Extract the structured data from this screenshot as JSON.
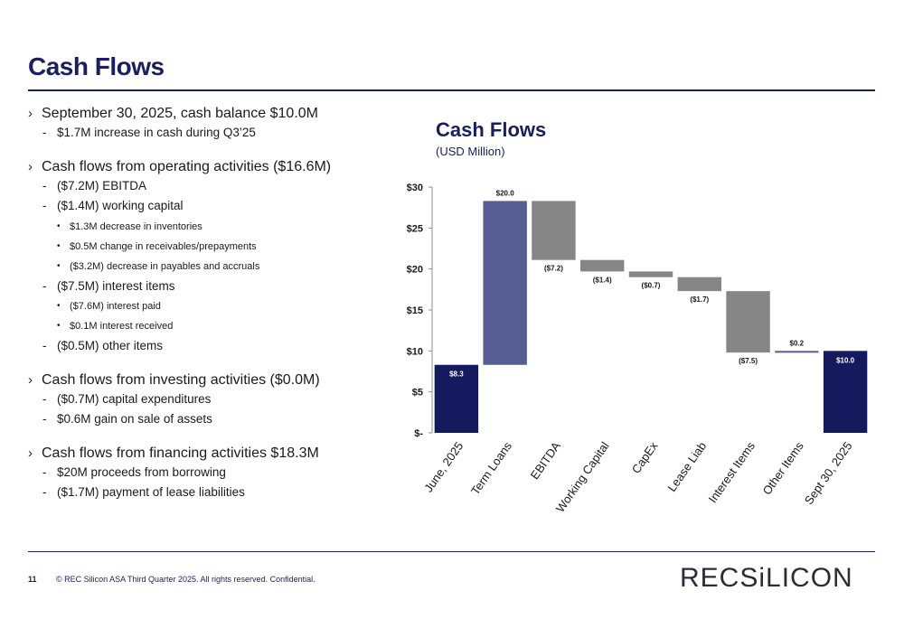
{
  "page": {
    "title": "Cash Flows",
    "page_number": "11",
    "copyright": "© REC Silicon ASA Third Quarter 2025. All rights reserved. Confidential.",
    "logo_text": "RECSiLICON"
  },
  "bullets": [
    {
      "text": "September 30, 2025, cash balance $10.0M",
      "children": [
        {
          "text": "$1.7M increase in cash during Q3’25",
          "children": []
        }
      ]
    },
    {
      "text": "Cash flows from operating activities ($16.6M)",
      "children": [
        {
          "text": "($7.2M) EBITDA",
          "children": []
        },
        {
          "text": " ($1.4M) working capital",
          "children": [
            {
              "text": "$1.3M decrease in inventories"
            },
            {
              "text": "$0.5M change in receivables/prepayments"
            },
            {
              "text": "($3.2M) decrease in payables and accruals"
            }
          ]
        },
        {
          "text": "($7.5M) interest items",
          "children": [
            {
              "text": "($7.6M) interest paid"
            },
            {
              "text": "$0.1M interest received"
            }
          ]
        },
        {
          "text": "($0.5M) other items",
          "children": []
        }
      ]
    },
    {
      "text": "Cash flows from investing activities ($0.0M)",
      "children": [
        {
          "text": "($0.7M) capital expenditures",
          "children": []
        },
        {
          "text": "$0.6M gain on sale of assets",
          "children": []
        }
      ]
    },
    {
      "text": "Cash flows from financing activities $18.3M",
      "children": [
        {
          "text": "$20M proceeds from borrowing",
          "children": []
        },
        {
          "text": "($1.7M) payment of lease liabilities",
          "children": []
        }
      ]
    }
  ],
  "chart_data": {
    "type": "bar",
    "subtype": "waterfall",
    "title": "Cash Flows",
    "subtitle": "(USD Million)",
    "categories": [
      "June, 2025",
      "Term Loans",
      "EBITDA",
      "Working Capital",
      "CapEx",
      "Lease Liab",
      "Interest Items",
      "Other Items",
      "Sept 30, 2025"
    ],
    "bars": [
      {
        "category": "June, 2025",
        "base": 0,
        "top": 8.3,
        "label": "$8.3",
        "kind": "total"
      },
      {
        "category": "Term Loans",
        "base": 8.3,
        "top": 28.3,
        "label": "$20.0",
        "kind": "increase"
      },
      {
        "category": "EBITDA",
        "base": 21.1,
        "top": 28.3,
        "label": "($7.2)",
        "kind": "decrease"
      },
      {
        "category": "Working Capital",
        "base": 19.7,
        "top": 21.1,
        "label": "($1.4)",
        "kind": "decrease"
      },
      {
        "category": "CapEx",
        "base": 19.0,
        "top": 19.7,
        "label": "($0.7)",
        "kind": "decrease"
      },
      {
        "category": "Lease Liab",
        "base": 17.3,
        "top": 19.0,
        "label": "($1.7)",
        "kind": "decrease"
      },
      {
        "category": "Interest Items",
        "base": 9.8,
        "top": 17.3,
        "label": "($7.5)",
        "kind": "decrease"
      },
      {
        "category": "Other Items",
        "base": 9.8,
        "top": 10.0,
        "label": "$0.2",
        "kind": "increase"
      },
      {
        "category": "Sept 30, 2025",
        "base": 0,
        "top": 10.0,
        "label": "$10.0",
        "kind": "total"
      }
    ],
    "ylim": [
      0,
      30
    ],
    "yticks": [
      0,
      5,
      10,
      15,
      20,
      25,
      30
    ],
    "ytick_labels": [
      "$-",
      "$5",
      "$10",
      "$15",
      "$20",
      "$25",
      "$30"
    ],
    "grid": false,
    "colors": {
      "total": "#151a5e",
      "increase": "#575e92",
      "decrease": "#868686",
      "axis": "#8c8c8c"
    }
  }
}
